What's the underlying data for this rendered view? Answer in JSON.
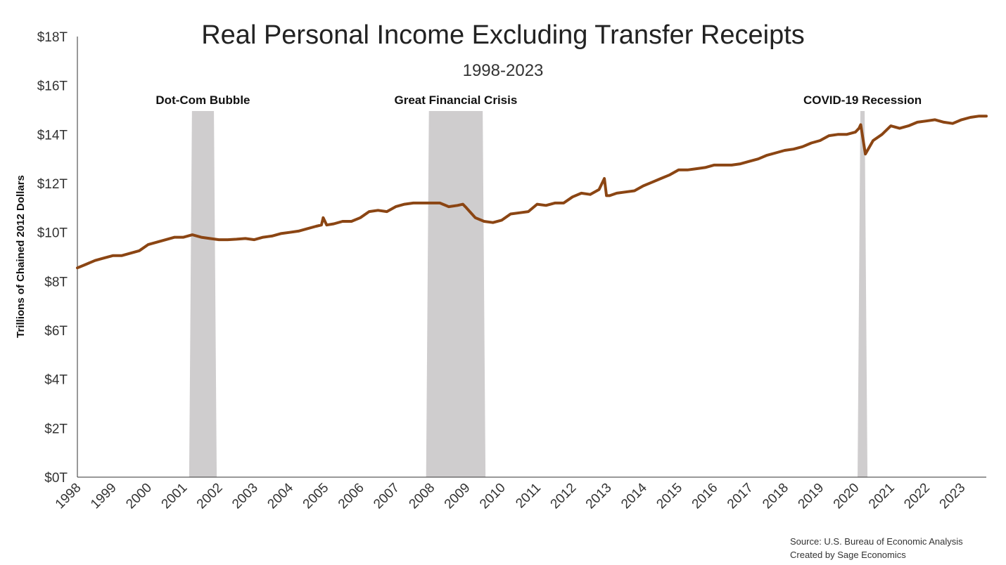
{
  "chart_data": {
    "type": "line",
    "title": "Real Personal Income Excluding Transfer Receipts",
    "subtitle": "1998-2023",
    "ylabel": "Trillions of Chained 2012 Dollars",
    "xlabel": "",
    "ylim": [
      0,
      18
    ],
    "xlim": [
      1998.0,
      2023.7
    ],
    "yticks": [
      {
        "value": 0,
        "label": "$0T"
      },
      {
        "value": 2,
        "label": "$2T"
      },
      {
        "value": 4,
        "label": "$4T"
      },
      {
        "value": 6,
        "label": "$6T"
      },
      {
        "value": 8,
        "label": "$8T"
      },
      {
        "value": 10,
        "label": "$10T"
      },
      {
        "value": 12,
        "label": "$12T"
      },
      {
        "value": 14,
        "label": "$14T"
      },
      {
        "value": 16,
        "label": "$16T"
      },
      {
        "value": 18,
        "label": "$18T"
      }
    ],
    "xticks": [
      "1998",
      "1999",
      "2000",
      "2001",
      "2002",
      "2003",
      "2004",
      "2005",
      "2006",
      "2007",
      "2008",
      "2009",
      "2010",
      "2011",
      "2012",
      "2013",
      "2014",
      "2015",
      "2016",
      "2017",
      "2018",
      "2019",
      "2020",
      "2021",
      "2022",
      "2023"
    ],
    "line_color": "#8B4513",
    "recession_color": "#cfcdce",
    "recessions": [
      {
        "label": "Dot-Com Bubble",
        "start": 2001.2,
        "end": 2001.9
      },
      {
        "label": "Great Financial Crisis",
        "start": 2007.9,
        "end": 2009.5
      },
      {
        "label": "COVID-19 Recession",
        "start": 2020.1,
        "end": 2020.3
      }
    ],
    "series": [
      {
        "x": [
          1998.0,
          1998.25,
          1998.5,
          1998.75,
          1999.0,
          1999.25,
          1999.5,
          1999.75,
          2000.0,
          2000.25,
          2000.5,
          2000.75,
          2001.0,
          2001.25,
          2001.5,
          2001.75,
          2002.0,
          2002.25,
          2002.5,
          2002.75,
          2003.0,
          2003.25,
          2003.5,
          2003.75,
          2004.0,
          2004.25,
          2004.5,
          2004.75,
          2004.9,
          2004.95,
          2005.05,
          2005.25,
          2005.5,
          2005.75,
          2006.0,
          2006.25,
          2006.5,
          2006.75,
          2007.0,
          2007.25,
          2007.5,
          2007.75,
          2008.0,
          2008.25,
          2008.5,
          2008.75,
          2008.9,
          2009.0,
          2009.25,
          2009.5,
          2009.75,
          2010.0,
          2010.25,
          2010.5,
          2010.75,
          2011.0,
          2011.25,
          2011.5,
          2011.75,
          2012.0,
          2012.25,
          2012.5,
          2012.75,
          2012.9,
          2012.96,
          2013.05,
          2013.25,
          2013.5,
          2013.75,
          2014.0,
          2014.25,
          2014.5,
          2014.75,
          2015.0,
          2015.25,
          2015.5,
          2015.75,
          2016.0,
          2016.25,
          2016.5,
          2016.75,
          2017.0,
          2017.25,
          2017.5,
          2017.75,
          2018.0,
          2018.25,
          2018.5,
          2018.75,
          2019.0,
          2019.25,
          2019.5,
          2019.75,
          2020.0,
          2020.1,
          2020.15,
          2020.28,
          2020.5,
          2020.75,
          2021.0,
          2021.25,
          2021.5,
          2021.75,
          2022.0,
          2022.25,
          2022.5,
          2022.75,
          2023.0,
          2023.25,
          2023.5,
          2023.7
        ],
        "values": [
          8.55,
          8.7,
          8.85,
          8.95,
          9.05,
          9.05,
          9.15,
          9.25,
          9.5,
          9.6,
          9.7,
          9.8,
          9.8,
          9.9,
          9.8,
          9.75,
          9.7,
          9.7,
          9.72,
          9.75,
          9.7,
          9.8,
          9.85,
          9.95,
          10.0,
          10.05,
          10.15,
          10.25,
          10.3,
          10.6,
          10.3,
          10.35,
          10.45,
          10.45,
          10.6,
          10.85,
          10.9,
          10.85,
          11.05,
          11.15,
          11.2,
          11.2,
          11.2,
          11.2,
          11.05,
          11.1,
          11.15,
          11.0,
          10.6,
          10.45,
          10.4,
          10.5,
          10.75,
          10.8,
          10.85,
          11.15,
          11.1,
          11.2,
          11.2,
          11.45,
          11.6,
          11.55,
          11.75,
          12.2,
          11.5,
          11.5,
          11.6,
          11.65,
          11.7,
          11.9,
          12.05,
          12.2,
          12.35,
          12.55,
          12.55,
          12.6,
          12.65,
          12.75,
          12.75,
          12.75,
          12.8,
          12.9,
          13.0,
          13.15,
          13.25,
          13.35,
          13.4,
          13.5,
          13.65,
          13.75,
          13.95,
          14.0,
          14.0,
          14.1,
          14.25,
          14.4,
          13.2,
          13.75,
          14.0,
          14.35,
          14.25,
          14.35,
          14.5,
          14.55,
          14.6,
          14.5,
          14.45,
          14.6,
          14.7,
          14.75,
          14.75
        ]
      }
    ]
  },
  "source_text": "Source: U.S. Bureau of Economic Analysis",
  "credit_text": "Created by Sage Economics"
}
